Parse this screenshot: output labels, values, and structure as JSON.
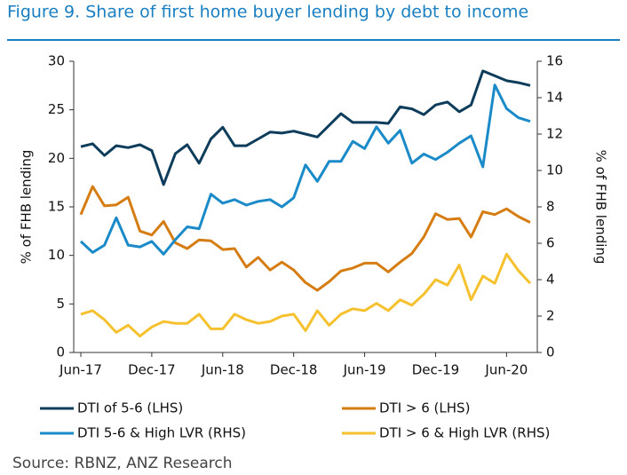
{
  "chart_data": {
    "type": "line",
    "title": "Figure 9. Share of first home buyer lending by debt to income",
    "ylabel": "% of FHB lending",
    "y2label": "% of FHB lending",
    "source": "Source: RBNZ, ANZ Research",
    "categories": [
      "Jun-17",
      null,
      null,
      null,
      null,
      null,
      "Dec-17",
      null,
      null,
      null,
      null,
      null,
      "Jun-18",
      null,
      null,
      null,
      null,
      null,
      "Dec-18",
      null,
      null,
      null,
      null,
      null,
      "Jun-19",
      null,
      null,
      null,
      null,
      null,
      "Dec-19",
      null,
      null,
      null,
      null,
      null,
      "Jun-20",
      null,
      null
    ],
    "ylim": [
      0,
      30
    ],
    "yticks": [
      0,
      5,
      10,
      15,
      20,
      25,
      30
    ],
    "y2lim": [
      0,
      16
    ],
    "y2ticks": [
      0,
      2,
      4,
      6,
      8,
      10,
      12,
      14,
      16
    ],
    "series": [
      {
        "name": "DTI of 5-6 (LHS)",
        "color": "#0e3d5c",
        "axis": "y",
        "values": [
          21.2,
          21.5,
          20.3,
          21.3,
          21.1,
          21.4,
          20.8,
          17.3,
          20.5,
          21.4,
          19.5,
          22.0,
          23.2,
          21.3,
          21.3,
          22.0,
          22.7,
          22.6,
          22.8,
          22.5,
          22.2,
          23.4,
          24.6,
          23.7,
          23.7,
          23.7,
          23.6,
          25.3,
          25.1,
          24.5,
          25.5,
          25.8,
          24.8,
          25.5,
          29.0,
          28.5,
          28.0,
          27.8,
          27.5
        ]
      },
      {
        "name": "DTI > 6 (LHS)",
        "color": "#d57c12",
        "axis": "y",
        "values": [
          14.2,
          17.1,
          15.1,
          15.2,
          16.0,
          12.5,
          12.1,
          13.5,
          11.3,
          10.7,
          11.6,
          11.5,
          10.6,
          10.7,
          8.8,
          9.8,
          8.5,
          9.3,
          8.5,
          7.2,
          6.4,
          7.3,
          8.4,
          8.7,
          9.2,
          9.2,
          8.3,
          9.3,
          10.2,
          11.9,
          14.3,
          13.7,
          13.8,
          11.9,
          14.5,
          14.2,
          14.8,
          14.0,
          13.4
        ]
      },
      {
        "name": "DTI 5-6 & High LVR (RHS)",
        "color": "#1a8ac8",
        "axis": "y2",
        "values": [
          6.1,
          5.5,
          5.9,
          7.4,
          5.9,
          5.8,
          6.1,
          5.4,
          6.2,
          6.9,
          6.8,
          8.7,
          8.2,
          8.4,
          8.1,
          8.3,
          8.4,
          8.0,
          8.5,
          10.3,
          9.4,
          10.5,
          10.5,
          11.6,
          11.2,
          12.4,
          11.5,
          12.2,
          10.4,
          10.9,
          10.6,
          11.0,
          11.5,
          11.9,
          10.2,
          14.7,
          13.4,
          12.9,
          12.7
        ]
      },
      {
        "name": "DTI > 6 & High LVR (RHS)",
        "color": "#f5c12e",
        "axis": "y2",
        "values": [
          2.1,
          2.3,
          1.8,
          1.1,
          1.5,
          0.9,
          1.4,
          1.7,
          1.6,
          1.6,
          2.1,
          1.3,
          1.3,
          2.1,
          1.8,
          1.6,
          1.7,
          2.0,
          2.1,
          1.2,
          2.3,
          1.5,
          2.1,
          2.4,
          2.3,
          2.7,
          2.3,
          2.9,
          2.6,
          3.2,
          4.0,
          3.7,
          4.8,
          2.9,
          4.2,
          3.8,
          5.4,
          4.5,
          3.8
        ]
      }
    ]
  }
}
